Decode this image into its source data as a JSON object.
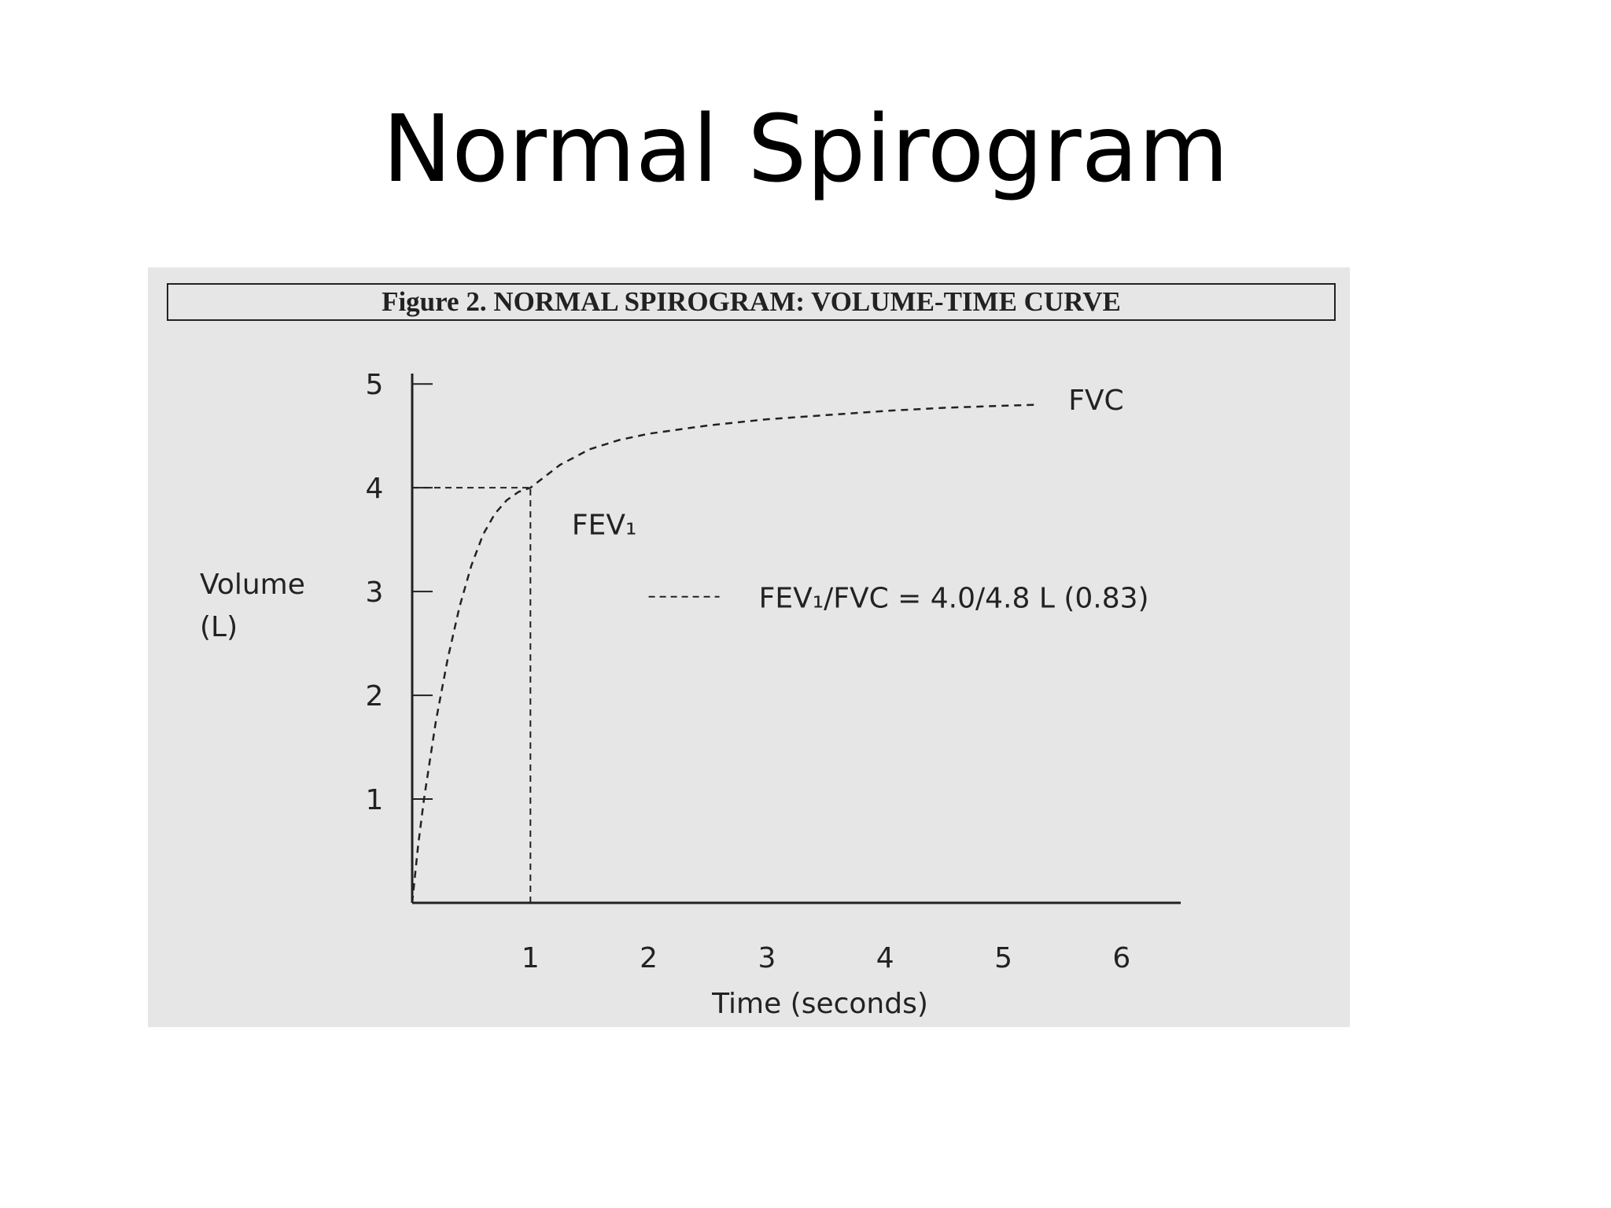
{
  "slide": {
    "title": "Normal Spirogram"
  },
  "figure": {
    "caption": "Figure 2.  NORMAL SPIROGRAM:  VOLUME-TIME CURVE"
  },
  "colors": {
    "ink": "#222222",
    "panel": "#e6e6e6"
  },
  "chart_data": {
    "type": "line",
    "title": "Figure 2.  NORMAL SPIROGRAM:  VOLUME-TIME CURVE",
    "xlabel": "Time (seconds)",
    "ylabel_lines": [
      "Volume",
      "(L)"
    ],
    "xlim": [
      0,
      6.5
    ],
    "ylim": [
      0,
      5.1
    ],
    "x_ticks": [
      1,
      2,
      3,
      4,
      5,
      6
    ],
    "y_ticks": [
      1,
      2,
      3,
      4,
      5
    ],
    "grid": false,
    "series": [
      {
        "line_style": "dashed",
        "x": [
          0,
          0.05,
          0.1,
          0.2,
          0.3,
          0.4,
          0.5,
          0.6,
          0.7,
          0.8,
          0.9,
          1.0,
          1.25,
          1.5,
          1.75,
          2.0,
          2.5,
          3.0,
          3.5,
          4.0,
          4.5,
          5.0,
          5.3
        ],
        "y": [
          0,
          0.55,
          1.0,
          1.75,
          2.35,
          2.85,
          3.25,
          3.55,
          3.75,
          3.88,
          3.96,
          4.0,
          4.22,
          4.37,
          4.46,
          4.52,
          4.6,
          4.66,
          4.7,
          4.74,
          4.77,
          4.79,
          4.8
        ]
      }
    ],
    "reference_lines": [
      {
        "from": [
          0,
          4.0
        ],
        "to": [
          1.0,
          4.0
        ]
      },
      {
        "from": [
          1.0,
          0
        ],
        "to": [
          1.0,
          4.0
        ]
      }
    ],
    "annotations": [
      {
        "id": "fvc",
        "text": "FVC",
        "x": 5.55,
        "y": 4.75
      },
      {
        "id": "fev1",
        "text": "FEV₁",
        "x": 1.35,
        "y": 3.55
      }
    ],
    "legend": {
      "placement": "center-right",
      "swatch_style": "dashed",
      "text": "FEV₁/FVC = 4.0/4.8 L (0.83)"
    }
  }
}
